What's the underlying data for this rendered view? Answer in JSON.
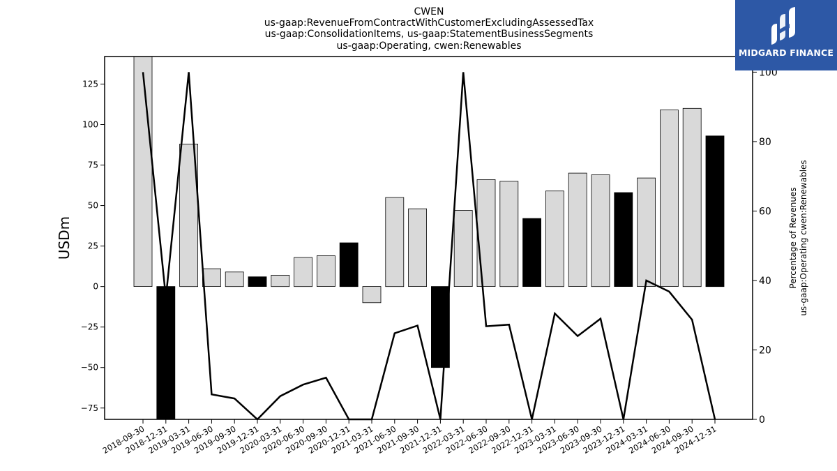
{
  "chart_data": {
    "type": "bar",
    "title_lines": [
      "CWEN",
      "us-gaap:RevenueFromContractWithCustomerExcludingAssessedTax",
      "us-gaap:ConsolidationItems, us-gaap:StatementBusinessSegments",
      "us-gaap:Operating, cwen:Renewables"
    ],
    "ylabel": "USDm",
    "ylabel_right": [
      "Percentage of Revenues",
      "us-gaap:Operating cwen:Renewables"
    ],
    "ylim": [
      -82,
      142
    ],
    "ylim_right": [
      0,
      104.5
    ],
    "yticks": [
      -75,
      -50,
      -25,
      0,
      25,
      50,
      75,
      100,
      125
    ],
    "yticks_right": [
      0,
      20,
      40,
      60,
      80,
      100
    ],
    "categories": [
      "2018-09-30",
      "2018-12-31",
      "2019-03-31",
      "2019-06-30",
      "2019-09-30",
      "2019-12-31",
      "2020-03-31",
      "2020-06-30",
      "2020-09-30",
      "2020-12-31",
      "2021-03-31",
      "2021-06-30",
      "2021-09-30",
      "2021-12-31",
      "2022-03-31",
      "2022-06-30",
      "2022-09-30",
      "2022-12-31",
      "2023-03-31",
      "2023-06-30",
      "2023-09-30",
      "2023-12-31",
      "2024-03-31",
      "2024-06-30",
      "2024-09-30",
      "2024-12-31"
    ],
    "values": [
      145,
      -82,
      88,
      11,
      9,
      6,
      7,
      18,
      19,
      27,
      -10,
      55,
      48,
      -50,
      47,
      66,
      65,
      42,
      59,
      70,
      69,
      58,
      67,
      109,
      110,
      93
    ],
    "bar_colors": [
      "#d9d9d9",
      "#000000",
      "#d9d9d9",
      "#d9d9d9",
      "#d9d9d9",
      "#000000",
      "#d9d9d9",
      "#d9d9d9",
      "#d9d9d9",
      "#000000",
      "#d9d9d9",
      "#d9d9d9",
      "#d9d9d9",
      "#000000",
      "#d9d9d9",
      "#d9d9d9",
      "#d9d9d9",
      "#000000",
      "#d9d9d9",
      "#d9d9d9",
      "#d9d9d9",
      "#000000",
      "#d9d9d9",
      "#d9d9d9",
      "#d9d9d9",
      "#000000"
    ],
    "line_values": [
      100,
      35,
      100,
      7.2,
      6,
      0,
      6.7,
      10,
      12,
      0,
      -1,
      24.8,
      27,
      0,
      100,
      26.8,
      27.3,
      0,
      30.5,
      24,
      29,
      0,
      40,
      36.8,
      28.7,
      0
    ],
    "grid": false
  },
  "logo": {
    "text": "MIDGARD FINANCE",
    "bg_color": "#2d58a6"
  }
}
